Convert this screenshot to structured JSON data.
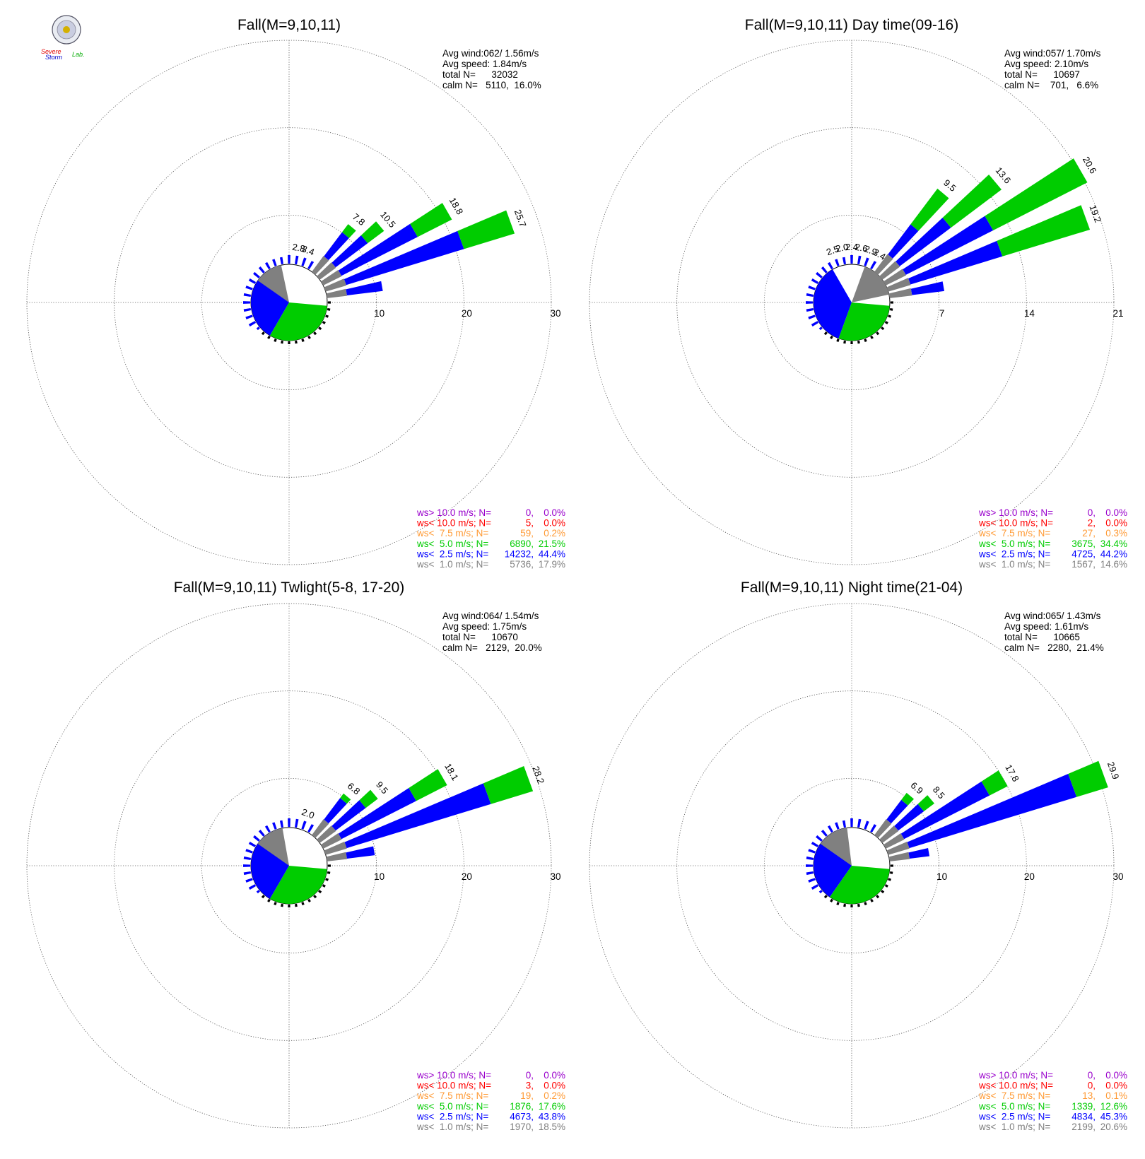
{
  "colors": {
    "calm": "#ffffff",
    "lt1": "#808080",
    "lt2_5": "#0000ff",
    "lt5": "#00cc00",
    "lt7_5": "#ff9933",
    "lt10": "#ff0000",
    "gt10": "#9900cc",
    "grid": "#555555"
  },
  "logo": {
    "word1": "Severe",
    "word2": "Storm",
    "word3": "Lab."
  },
  "legend_labels": [
    "ws> 10.0 m/s; N=",
    "ws< 10.0 m/s; N=",
    "ws<  7.5 m/s; N=",
    "ws<  5.0 m/s; N=",
    "ws<  2.5 m/s; N=",
    "ws<  1.0 m/s; N="
  ],
  "chart_data": [
    {
      "type": "wind-rose",
      "title": "Fall(M=9,10,11)",
      "stats": [
        "Avg wind:062/ 1.56m/s",
        "Avg speed: 1.84m/s",
        "total N=      32032",
        "calm N=   5110,  16.0%"
      ],
      "rings": [
        10,
        20,
        30
      ],
      "ring_labels": [
        "10",
        "20",
        "30"
      ],
      "bar_labels": [
        {
          "dir": 10,
          "text": "2.8"
        },
        {
          "dir": 20,
          "text": "3.4"
        },
        {
          "dir": 40,
          "text": "7.8"
        },
        {
          "dir": 50,
          "text": "10.5"
        },
        {
          "dir": 60,
          "text": "18.8"
        },
        {
          "dir": 70,
          "text": "25.7"
        }
      ],
      "spokes": [
        {
          "dir": 40,
          "gray": 4.1,
          "blue": 6.2,
          "green": 7.8
        },
        {
          "dir": 50,
          "gray": 4.2,
          "blue": 7.5,
          "green": 10.5
        },
        {
          "dir": 60,
          "gray": 4.3,
          "blue": 13.2,
          "green": 18.8
        },
        {
          "dir": 70,
          "gray": 4.5,
          "blue": 18.0,
          "green": 25.7
        },
        {
          "dir": 80,
          "gray": 4.2,
          "blue": 7.0,
          "green": 7.0
        }
      ],
      "legend": [
        {
          "n": "0",
          "pct": "0.0%"
        },
        {
          "n": "5",
          "pct": "0.0%"
        },
        {
          "n": "59",
          "pct": "0.2%"
        },
        {
          "n": "6890",
          "pct": "21.5%"
        },
        {
          "n": "14232",
          "pct": "44.4%"
        },
        {
          "n": "5736",
          "pct": "17.9%"
        }
      ]
    },
    {
      "type": "wind-rose",
      "title": "Fall(M=9,10,11) Day time(09-16)",
      "stats": [
        "Avg wind:057/ 1.70m/s",
        "Avg speed: 2.10m/s",
        "total N=      10697",
        "calm N=    701,   6.6%"
      ],
      "rings": [
        7,
        14,
        21
      ],
      "ring_labels": [
        "7",
        "14",
        "21"
      ],
      "bar_labels": [
        {
          "dir": -20,
          "text": "2.5"
        },
        {
          "dir": -10,
          "text": "2.0"
        },
        {
          "dir": 0,
          "text": "2.4"
        },
        {
          "dir": 10,
          "text": "2.6"
        },
        {
          "dir": 20,
          "text": "2.9"
        },
        {
          "dir": 30,
          "text": "3.4"
        },
        {
          "dir": 40,
          "text": "9.5"
        },
        {
          "dir": 50,
          "text": "13.6"
        },
        {
          "dir": 60,
          "text": "20.6"
        },
        {
          "dir": 70,
          "text": "19.2"
        }
      ],
      "spokes": [
        {
          "dir": 40,
          "gray": 3.2,
          "blue": 5.2,
          "green": 9.5
        },
        {
          "dir": 50,
          "gray": 3.2,
          "blue": 7.5,
          "green": 13.6
        },
        {
          "dir": 60,
          "gray": 3.3,
          "blue": 10.5,
          "green": 20.6
        },
        {
          "dir": 70,
          "gray": 3.4,
          "blue": 10.4,
          "green": 19.2
        },
        {
          "dir": 80,
          "gray": 3.3,
          "blue": 4.8,
          "green": 4.8
        }
      ],
      "legend": [
        {
          "n": "0",
          "pct": "0.0%"
        },
        {
          "n": "2",
          "pct": "0.0%"
        },
        {
          "n": "27",
          "pct": "0.3%"
        },
        {
          "n": "3675",
          "pct": "34.4%"
        },
        {
          "n": "4725",
          "pct": "44.2%"
        },
        {
          "n": "1567",
          "pct": "14.6%"
        }
      ]
    },
    {
      "type": "wind-rose",
      "title": "Fall(M=9,10,11) Twlight(5-8, 17-20)",
      "stats": [
        "Avg wind:064/ 1.54m/s",
        "Avg speed: 1.75m/s",
        "total N=      10670",
        "calm N=   2129,  20.0%"
      ],
      "rings": [
        10,
        20,
        30
      ],
      "ring_labels": [
        "10",
        "20",
        "30"
      ],
      "bar_labels": [
        {
          "dir": 20,
          "text": "2.0"
        },
        {
          "dir": 40,
          "text": "6.8"
        },
        {
          "dir": 50,
          "text": "9.5"
        },
        {
          "dir": 60,
          "text": "18.1"
        },
        {
          "dir": 70,
          "text": "28.2"
        }
      ],
      "spokes": [
        {
          "dir": 40,
          "gray": 4.1,
          "blue": 5.8,
          "green": 6.8
        },
        {
          "dir": 50,
          "gray": 4.2,
          "blue": 7.2,
          "green": 9.5
        },
        {
          "dir": 60,
          "gray": 4.3,
          "blue": 13.0,
          "green": 18.1
        },
        {
          "dir": 70,
          "gray": 4.6,
          "blue": 21.5,
          "green": 28.2
        },
        {
          "dir": 80,
          "gray": 4.2,
          "blue": 6.0,
          "green": 6.0
        }
      ],
      "legend": [
        {
          "n": "0",
          "pct": "0.0%"
        },
        {
          "n": "3",
          "pct": "0.0%"
        },
        {
          "n": "19",
          "pct": "0.2%"
        },
        {
          "n": "1876",
          "pct": "17.6%"
        },
        {
          "n": "4673",
          "pct": "43.8%"
        },
        {
          "n": "1970",
          "pct": "18.5%"
        }
      ]
    },
    {
      "type": "wind-rose",
      "title": "Fall(M=9,10,11) Night time(21-04)",
      "stats": [
        "Avg wind:065/ 1.43m/s",
        "Avg speed: 1.61m/s",
        "total N=      10665",
        "calm N=   2280,  21.4%"
      ],
      "rings": [
        10,
        20,
        30
      ],
      "ring_labels": [
        "10",
        "20",
        "30"
      ],
      "bar_labels": [
        {
          "dir": 40,
          "text": "6.9"
        },
        {
          "dir": 50,
          "text": "8.5"
        },
        {
          "dir": 60,
          "text": "17.8"
        },
        {
          "dir": 70,
          "text": "29.9"
        }
      ],
      "spokes": [
        {
          "dir": 40,
          "gray": 4.1,
          "blue": 5.5,
          "green": 6.9
        },
        {
          "dir": 50,
          "gray": 4.2,
          "blue": 6.5,
          "green": 8.5
        },
        {
          "dir": 60,
          "gray": 4.3,
          "blue": 14.5,
          "green": 17.8
        },
        {
          "dir": 70,
          "gray": 4.6,
          "blue": 24.5,
          "green": 29.9
        },
        {
          "dir": 80,
          "gray": 4.2,
          "blue": 5.0,
          "green": 5.0
        }
      ],
      "legend": [
        {
          "n": "0",
          "pct": "0.0%"
        },
        {
          "n": "0",
          "pct": "0.0%"
        },
        {
          "n": "13",
          "pct": "0.1%"
        },
        {
          "n": "1339",
          "pct": "12.6%"
        },
        {
          "n": "4834",
          "pct": "45.3%"
        },
        {
          "n": "2199",
          "pct": "20.6%"
        }
      ]
    }
  ]
}
